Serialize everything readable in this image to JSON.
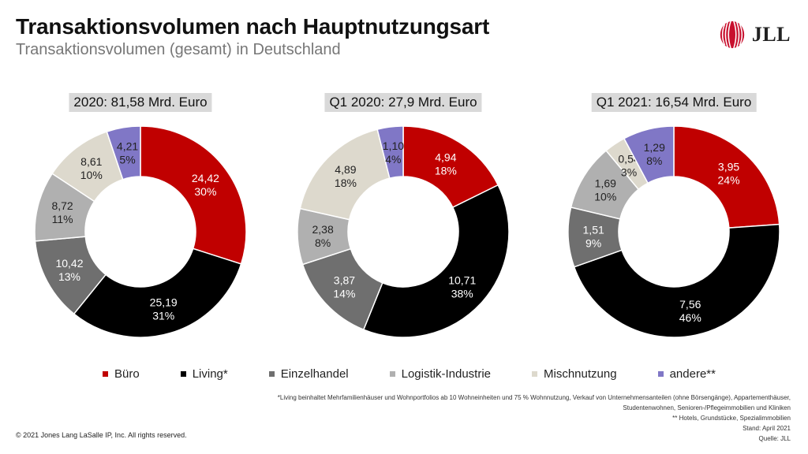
{
  "header": {
    "title": "Transaktionsvolumen nach Hauptnutzungsart",
    "subtitle": "Transaktionsvolumen (gesamt) in Deutschland"
  },
  "brand": {
    "logo_text": "JLL",
    "accent": "#c8102e"
  },
  "legend": [
    {
      "label": "Büro",
      "color": "#c00000"
    },
    {
      "label": "Living*",
      "color": "#000000"
    },
    {
      "label": "Einzelhandel",
      "color": "#6f6f6f"
    },
    {
      "label": "Logistik-Industrie",
      "color": "#b0b0b0"
    },
    {
      "label": "Mischnutzung",
      "color": "#ddd9cd"
    },
    {
      "label": "andere**",
      "color": "#8077c6"
    }
  ],
  "chart_data": [
    {
      "type": "pie",
      "title": "2020: 81,58 Mrd. Euro",
      "categories": [
        "Büro",
        "Living*",
        "Einzelhandel",
        "Logistik-Industrie",
        "Mischnutzung",
        "andere**"
      ],
      "values": [
        24.42,
        25.19,
        10.42,
        8.72,
        8.61,
        4.21
      ],
      "value_labels": [
        "24,42",
        "25,19",
        "10,42",
        "8,72",
        "8,61",
        "4,21"
      ],
      "percent_labels": [
        "30%",
        "31%",
        "13%",
        "11%",
        "10%",
        "5%"
      ]
    },
    {
      "type": "pie",
      "title": "Q1 2020: 27,9 Mrd. Euro",
      "categories": [
        "Büro",
        "Living*",
        "Einzelhandel",
        "Logistik-Industrie",
        "Mischnutzung",
        "andere**"
      ],
      "values": [
        4.94,
        10.71,
        3.87,
        2.38,
        4.89,
        1.1
      ],
      "value_labels": [
        "4,94",
        "10,71",
        "3,87",
        "2,38",
        "4,89",
        "1,10"
      ],
      "percent_labels": [
        "18%",
        "38%",
        "14%",
        "8%",
        "18%",
        "4%"
      ]
    },
    {
      "type": "pie",
      "title": "Q1 2021: 16,54 Mrd. Euro",
      "categories": [
        "Büro",
        "Living*",
        "Einzelhandel",
        "Logistik-Industrie",
        "Mischnutzung",
        "andere**"
      ],
      "values": [
        3.95,
        7.56,
        1.51,
        1.69,
        0.54,
        1.29
      ],
      "value_labels": [
        "3,95",
        "7,56",
        "1,51",
        "1,69",
        "0,54",
        "1,29"
      ],
      "percent_labels": [
        "24%",
        "46%",
        "9%",
        "10%",
        "3%",
        "8%"
      ]
    }
  ],
  "footnote": {
    "line1": "*Living beinhaltet Mehrfamilienhäuser und Wohnportfolios ab 10 Wohneinheiten und 75 % Wohnnutzung, Verkauf von Unternehmensanteilen (ohne Börsengänge), Appartementhäuser,",
    "line2": "Studentenwohnen, Senioren-/Pflegeimmobilien und Kliniken",
    "line3": "** Hotels, Grundstücke, Spezialimmobilien",
    "line4": "Stand: April 2021",
    "line5": "Quelle: JLL"
  },
  "copyright": "© 2021 Jones Lang LaSalle IP, Inc. All rights reserved."
}
